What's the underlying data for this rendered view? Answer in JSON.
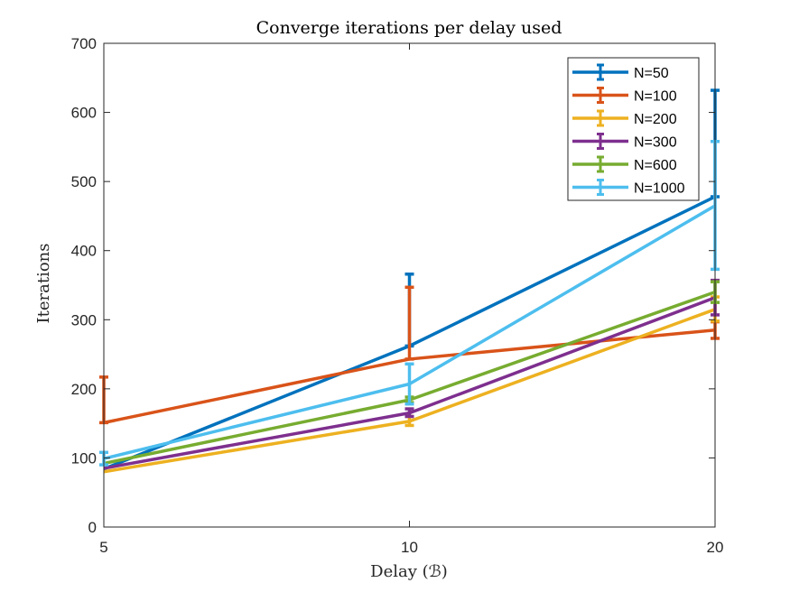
{
  "chart_data": {
    "type": "line",
    "title": "Converge iterations per delay used",
    "xlabel": "Delay (ℬ)",
    "ylabel": "Iterations",
    "x": [
      5,
      10,
      20
    ],
    "x_tick_labels": [
      "5",
      "10",
      "20"
    ],
    "y_ticks": [
      0,
      100,
      200,
      300,
      400,
      500,
      600,
      700
    ],
    "ylim": [
      0,
      700
    ],
    "x_scale": "categorical-equal-spacing",
    "grid": false,
    "legend_position": "top-right",
    "error_bars": true,
    "series": [
      {
        "name": "N=50",
        "color": "#0072BD",
        "values": [
          84,
          262,
          478
        ],
        "err_low": [
          84,
          262,
          478
        ],
        "err_high": [
          84,
          366,
          632
        ]
      },
      {
        "name": "N=100",
        "color": "#D95319",
        "values": [
          151,
          243,
          285
        ],
        "err_low": [
          151,
          243,
          273
        ],
        "err_high": [
          217,
          347,
          297
        ]
      },
      {
        "name": "N=200",
        "color": "#EDB120",
        "values": [
          80,
          153,
          315
        ],
        "err_low": [
          80,
          147,
          298
        ],
        "err_high": [
          80,
          160,
          333
        ]
      },
      {
        "name": "N=300",
        "color": "#7E2F8E",
        "values": [
          85,
          165,
          332
        ],
        "err_low": [
          85,
          160,
          307
        ],
        "err_high": [
          85,
          171,
          357
        ]
      },
      {
        "name": "N=600",
        "color": "#77AC30",
        "values": [
          92,
          184,
          340
        ],
        "err_low": [
          92,
          180,
          325
        ],
        "err_high": [
          92,
          188,
          355
        ]
      },
      {
        "name": "N=1000",
        "color": "#4DBEEE",
        "values": [
          99,
          207,
          465
        ],
        "err_low": [
          90,
          178,
          373
        ],
        "err_high": [
          108,
          236,
          558
        ]
      }
    ]
  }
}
